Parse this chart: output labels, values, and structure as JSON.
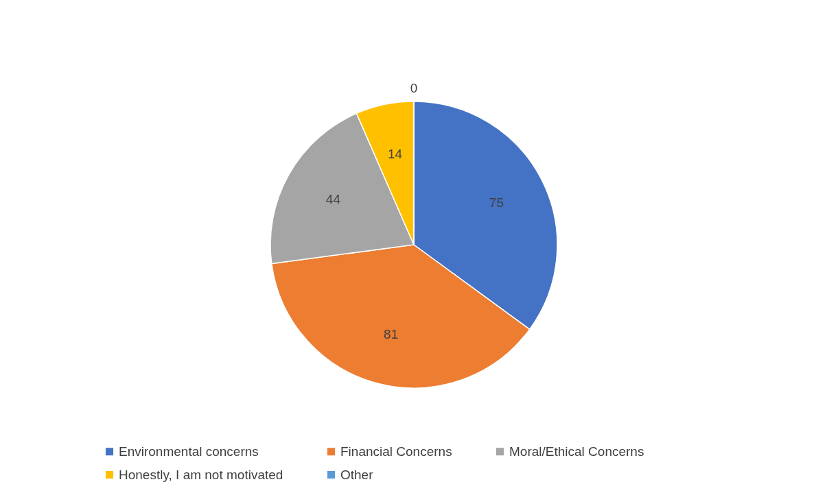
{
  "chart_data": {
    "type": "pie",
    "categories": [
      "Environmental concerns",
      "Financial Concerns",
      "Moral/Ethical Concerns",
      "Honestly, I am not motivated",
      "Other"
    ],
    "values": [
      75,
      81,
      44,
      14,
      0
    ],
    "colors": [
      "#4472c4",
      "#ed7d31",
      "#a5a5a5",
      "#ffc000",
      "#5b9bd5"
    ],
    "value_labels": [
      "75",
      "81",
      "44",
      "14",
      "0"
    ],
    "legend": "bottom"
  }
}
